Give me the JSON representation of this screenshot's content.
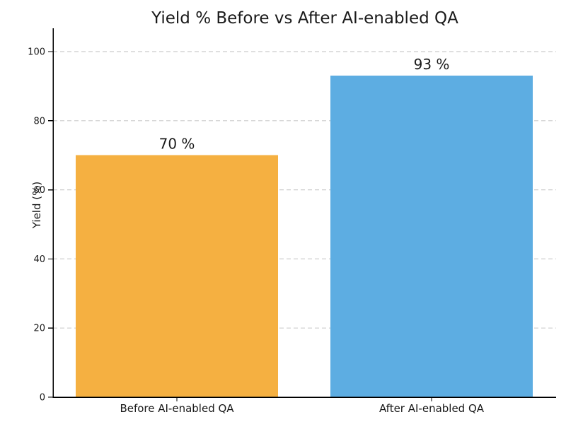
{
  "chart_data": {
    "type": "bar",
    "title": "Yield % Before vs After AI-enabled QA",
    "xlabel": "",
    "ylabel": "Yield (%)",
    "categories": [
      "Before AI-enabled QA",
      "After AI-enabled QA"
    ],
    "values": [
      70,
      93
    ],
    "value_labels": [
      "70 %",
      "93 %"
    ],
    "bar_colors": [
      "#F5B041",
      "#5DADE2"
    ],
    "ylim": [
      0,
      107
    ],
    "yticks": [
      0,
      20,
      40,
      60,
      80,
      100
    ],
    "grid": {
      "axis": "y",
      "style": "dashed",
      "color": "#cccccc"
    },
    "legend": null,
    "background_color": "#ffffff",
    "text_color": "#1a1a1a",
    "spine_color": "#000000"
  }
}
